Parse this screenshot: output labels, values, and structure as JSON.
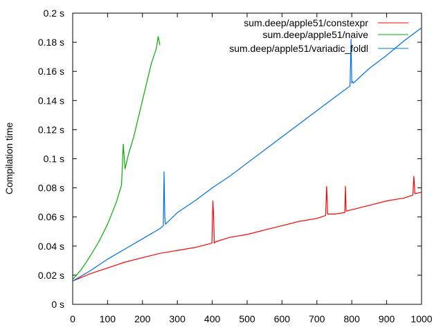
{
  "chart_data": {
    "type": "line",
    "title": "",
    "xlabel": "",
    "ylabel": "Compilation time",
    "xlim": [
      0,
      1000
    ],
    "ylim": [
      0,
      0.2
    ],
    "x_ticks": [
      0,
      100,
      200,
      300,
      400,
      500,
      600,
      700,
      800,
      900,
      1000
    ],
    "x_tick_labels": [
      "0",
      "100",
      "200",
      "300",
      "400",
      "500",
      "600",
      "700",
      "800",
      "900",
      "1000"
    ],
    "y_ticks": [
      0,
      0.02,
      0.04,
      0.06,
      0.08,
      0.1,
      0.12,
      0.14,
      0.16,
      0.18,
      0.2
    ],
    "y_tick_labels": [
      "0 s",
      "0.02 s",
      "0.04 s",
      "0.06 s",
      "0.08 s",
      "0.1 s",
      "0.12 s",
      "0.14 s",
      "0.16 s",
      "0.18 s",
      "0.2 s"
    ],
    "grid": false,
    "legend_position": "top-right",
    "series": [
      {
        "name": "sum.deep/apple51/constexpr",
        "color": "#ff0000",
        "x": [
          0,
          50,
          100,
          150,
          200,
          250,
          300,
          350,
          399,
          402,
          404,
          406,
          410,
          450,
          500,
          550,
          600,
          650,
          700,
          725,
          728,
          731,
          750,
          780,
          782,
          784,
          800,
          850,
          900,
          950,
          975,
          978,
          981,
          1000
        ],
        "y": [
          0.016,
          0.021,
          0.025,
          0.029,
          0.032,
          0.035,
          0.037,
          0.039,
          0.042,
          0.071,
          0.06,
          0.042,
          0.043,
          0.046,
          0.048,
          0.051,
          0.054,
          0.057,
          0.059,
          0.061,
          0.081,
          0.062,
          0.062,
          0.063,
          0.081,
          0.064,
          0.065,
          0.068,
          0.071,
          0.073,
          0.075,
          0.088,
          0.076,
          0.077
        ]
      },
      {
        "name": "sum.deep/apple51/naive",
        "color": "#00b000",
        "x": [
          0,
          25,
          50,
          75,
          100,
          125,
          140,
          145,
          150,
          160,
          175,
          200,
          225,
          240,
          245,
          250
        ],
        "y": [
          0.017,
          0.024,
          0.033,
          0.043,
          0.055,
          0.07,
          0.082,
          0.11,
          0.093,
          0.103,
          0.115,
          0.14,
          0.165,
          0.176,
          0.184,
          0.178
        ]
      },
      {
        "name": "sum.deep/apple51/variadic_foldl",
        "color": "#0070e0",
        "x": [
          0,
          50,
          100,
          150,
          200,
          250,
          260,
          262,
          264,
          266,
          270,
          300,
          350,
          400,
          450,
          500,
          550,
          600,
          650,
          700,
          750,
          795,
          798,
          800,
          802,
          805,
          850,
          900,
          950,
          1000
        ],
        "y": [
          0.016,
          0.023,
          0.031,
          0.038,
          0.045,
          0.052,
          0.054,
          0.091,
          0.06,
          0.055,
          0.056,
          0.063,
          0.071,
          0.08,
          0.088,
          0.097,
          0.106,
          0.115,
          0.124,
          0.133,
          0.142,
          0.15,
          0.182,
          0.152,
          0.153,
          0.152,
          0.162,
          0.171,
          0.181,
          0.19
        ]
      }
    ]
  }
}
